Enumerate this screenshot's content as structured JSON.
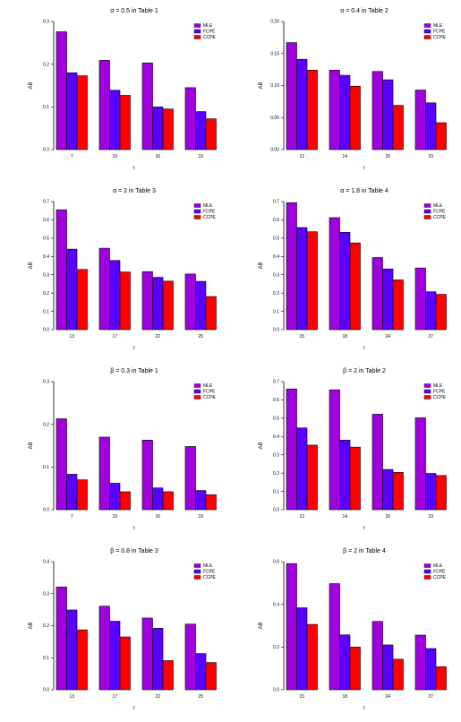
{
  "colors": {
    "MLE": "#a000e0",
    "FCPE": "#5a00ff",
    "CCPE": "#ff0000"
  },
  "chart_data": [
    {
      "type": "bar",
      "title": "α = 0.5 in Table 1",
      "xlabel": "r",
      "ylabel": "AB",
      "categories": [
        "7",
        "10",
        "16",
        "19"
      ],
      "ylim": [
        0,
        0.3
      ],
      "yticks": [
        "0.0",
        "0.1",
        "0.2",
        "0.3"
      ],
      "legend": "top-right",
      "series": [
        {
          "name": "MLE",
          "values": [
            0.276,
            0.209,
            0.203,
            0.145
          ]
        },
        {
          "name": "FCPE",
          "values": [
            0.18,
            0.139,
            0.1,
            0.089
          ]
        },
        {
          "name": "CCPE",
          "values": [
            0.173,
            0.127,
            0.095,
            0.072
          ]
        }
      ]
    },
    {
      "type": "bar",
      "title": "α = 0.4 in Table 2",
      "xlabel": "r",
      "ylabel": "AB",
      "categories": [
        "12",
        "14",
        "20",
        "23"
      ],
      "ylim": [
        0,
        0.2
      ],
      "yticks": [
        "0.00",
        "0.05",
        "0.10",
        "0.15",
        "0.20"
      ],
      "legend": "top-right",
      "series": [
        {
          "name": "MLE",
          "values": [
            0.167,
            0.124,
            0.122,
            0.093
          ]
        },
        {
          "name": "FCPE",
          "values": [
            0.141,
            0.116,
            0.109,
            0.073
          ]
        },
        {
          "name": "CCPE",
          "values": [
            0.124,
            0.099,
            0.069,
            0.042
          ]
        }
      ]
    },
    {
      "type": "bar",
      "title": "α = 2 in Table 3",
      "xlabel": "r",
      "ylabel": "AB",
      "categories": [
        "13",
        "17",
        "22",
        "25"
      ],
      "ylim": [
        0,
        0.7
      ],
      "yticks": [
        "0.0",
        "0.1",
        "0.2",
        "0.3",
        "0.4",
        "0.5",
        "0.6",
        "0.7"
      ],
      "legend": "top-right",
      "series": [
        {
          "name": "MLE",
          "values": [
            0.655,
            0.445,
            0.317,
            0.304
          ]
        },
        {
          "name": "FCPE",
          "values": [
            0.44,
            0.378,
            0.286,
            0.264
          ]
        },
        {
          "name": "CCPE",
          "values": [
            0.329,
            0.315,
            0.265,
            0.181
          ]
        }
      ]
    },
    {
      "type": "bar",
      "title": "α = 1.8 in Table 4",
      "xlabel": "r",
      "ylabel": "AB",
      "categories": [
        "15",
        "18",
        "24",
        "27"
      ],
      "ylim": [
        0,
        0.7
      ],
      "yticks": [
        "0.0",
        "0.1",
        "0.2",
        "0.3",
        "0.4",
        "0.5",
        "0.6",
        "0.7"
      ],
      "legend": "top-right",
      "series": [
        {
          "name": "MLE",
          "values": [
            0.694,
            0.612,
            0.394,
            0.337
          ]
        },
        {
          "name": "FCPE",
          "values": [
            0.558,
            0.532,
            0.332,
            0.207
          ]
        },
        {
          "name": "CCPE",
          "values": [
            0.535,
            0.474,
            0.272,
            0.193
          ]
        }
      ]
    },
    {
      "type": "bar",
      "title": "β = 0.3 in Table 1",
      "xlabel": "r",
      "ylabel": "AB",
      "categories": [
        "7",
        "10",
        "16",
        "19"
      ],
      "ylim": [
        0,
        0.3
      ],
      "yticks": [
        "0.0",
        "0.1",
        "0.2",
        "0.3"
      ],
      "legend": "top-right",
      "series": [
        {
          "name": "MLE",
          "values": [
            0.213,
            0.17,
            0.163,
            0.148
          ]
        },
        {
          "name": "FCPE",
          "values": [
            0.083,
            0.062,
            0.051,
            0.045
          ]
        },
        {
          "name": "CCPE",
          "values": [
            0.07,
            0.042,
            0.042,
            0.035
          ]
        }
      ]
    },
    {
      "type": "bar",
      "title": "β = 2 in Table 2",
      "xlabel": "r",
      "ylabel": "AB",
      "categories": [
        "12",
        "14",
        "20",
        "23"
      ],
      "ylim": [
        0,
        0.7
      ],
      "yticks": [
        "0.0",
        "0.1",
        "0.2",
        "0.3",
        "0.4",
        "0.5",
        "0.6",
        "0.7"
      ],
      "legend": "top-right",
      "series": [
        {
          "name": "MLE",
          "values": [
            0.66,
            0.655,
            0.522,
            0.502
          ]
        },
        {
          "name": "FCPE",
          "values": [
            0.447,
            0.38,
            0.22,
            0.198
          ]
        },
        {
          "name": "CCPE",
          "values": [
            0.353,
            0.342,
            0.204,
            0.187
          ]
        }
      ]
    },
    {
      "type": "bar",
      "title": "β = 0.8 in Table 3",
      "xlabel": "r",
      "ylabel": "AB",
      "categories": [
        "13",
        "17",
        "22",
        "25"
      ],
      "ylim": [
        0,
        0.4
      ],
      "yticks": [
        "0.0",
        "0.1",
        "0.2",
        "0.3",
        "0.4"
      ],
      "legend": "top-right",
      "series": [
        {
          "name": "MLE",
          "values": [
            0.321,
            0.261,
            0.224,
            0.205
          ]
        },
        {
          "name": "FCPE",
          "values": [
            0.249,
            0.214,
            0.192,
            0.113
          ]
        },
        {
          "name": "CCPE",
          "values": [
            0.187,
            0.165,
            0.091,
            0.085
          ]
        }
      ]
    },
    {
      "type": "bar",
      "title": "β = 2 in Table 4",
      "xlabel": "r",
      "ylabel": "AB",
      "categories": [
        "15",
        "18",
        "24",
        "27"
      ],
      "ylim": [
        0,
        0.6
      ],
      "yticks": [
        "0.0",
        "0.2",
        "0.4",
        "0.6"
      ],
      "legend": "top-right",
      "series": [
        {
          "name": "MLE",
          "values": [
            0.591,
            0.497,
            0.32,
            0.256
          ]
        },
        {
          "name": "FCPE",
          "values": [
            0.384,
            0.257,
            0.21,
            0.193
          ]
        },
        {
          "name": "CCPE",
          "values": [
            0.306,
            0.2,
            0.143,
            0.108
          ]
        }
      ]
    }
  ]
}
